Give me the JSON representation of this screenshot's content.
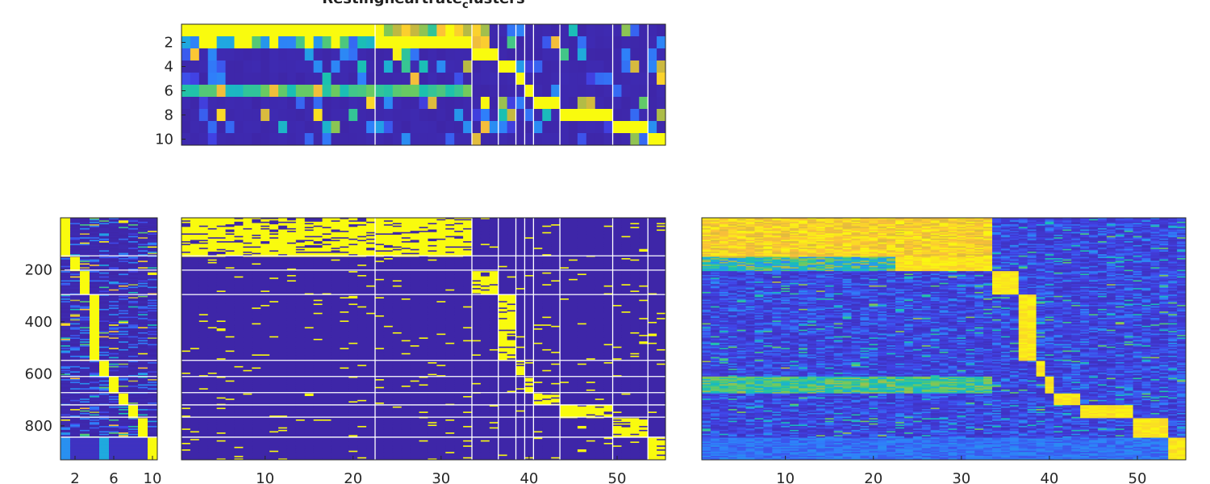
{
  "title": {
    "main": "Restingheartrate",
    "sub": "c",
    "rest": "lusters"
  },
  "chart_data": [
    {
      "type": "heatmap",
      "name": "cluster-centroids",
      "rows": 10,
      "cols": 55,
      "yticks": [
        2,
        4,
        6,
        8,
        10
      ],
      "xticks": [],
      "clim": [
        0,
        1
      ]
    },
    {
      "type": "heatmap",
      "name": "row-cluster-membership",
      "rows": 930,
      "cols": 10,
      "yticks": [
        200,
        400,
        600,
        800
      ],
      "xticks": [
        2,
        6,
        10
      ],
      "clim": [
        0,
        1
      ]
    },
    {
      "type": "heatmap",
      "name": "binary-assignments",
      "rows": 930,
      "cols": 55,
      "yticks": [],
      "xticks": [
        10,
        20,
        30,
        40,
        50
      ],
      "clim": [
        0,
        1
      ]
    },
    {
      "type": "heatmap",
      "name": "continuous-scores",
      "rows": 930,
      "cols": 55,
      "yticks": [],
      "xticks": [
        10,
        20,
        30,
        40,
        50
      ],
      "clim": [
        0,
        1
      ]
    }
  ],
  "clusters": {
    "row_clusters": [
      [
        1,
        146
      ],
      [
        147,
        201
      ],
      [
        202,
        295
      ],
      [
        296,
        548
      ],
      [
        549,
        610
      ],
      [
        611,
        672
      ],
      [
        673,
        719
      ],
      [
        720,
        766
      ],
      [
        767,
        843
      ],
      [
        844,
        930
      ]
    ],
    "col_clusters": [
      [
        1,
        22
      ],
      [
        23,
        33
      ],
      [
        34,
        36
      ],
      [
        37,
        38
      ],
      [
        39,
        39
      ],
      [
        40,
        40
      ],
      [
        41,
        43
      ],
      [
        44,
        49
      ],
      [
        50,
        53
      ],
      [
        54,
        55
      ]
    ]
  },
  "colormap": [
    "#3e26a8",
    "#4143e6",
    "#2f80fa",
    "#1fa8e0",
    "#1ac1b0",
    "#6ccb5f",
    "#c4b840",
    "#fcbf3a",
    "#f9fb0e"
  ]
}
